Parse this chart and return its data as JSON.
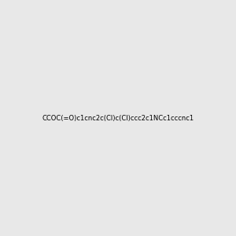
{
  "smiles": "CCOC(=O)c1cnc2c(Cl)c(Cl)ccc2c1NCc1cccnc1",
  "title": "",
  "bg_color": "#e8e8e8",
  "figsize": [
    3.0,
    3.0
  ],
  "dpi": 100
}
